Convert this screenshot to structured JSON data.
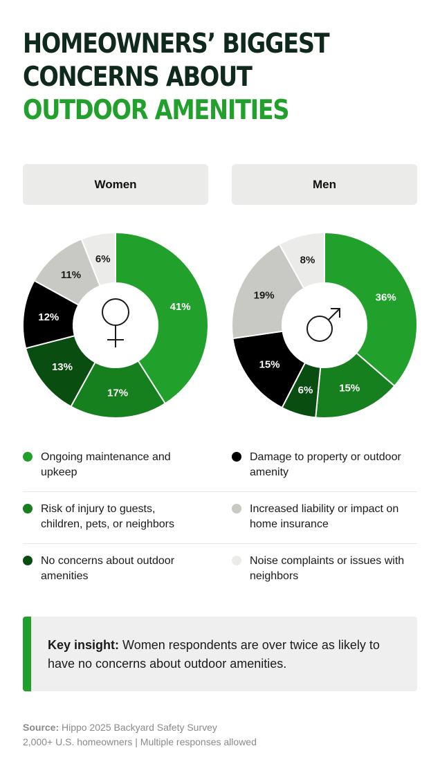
{
  "title": {
    "line1": "HOMEOWNERS’ BIGGEST",
    "line2": "CONCERNS ABOUT",
    "line3": "OUTDOOR AMENITIES"
  },
  "colors": {
    "maintenance": "#22a02c",
    "injury": "#15801d",
    "no_concerns": "#0a4d10",
    "damage": "#000000",
    "liability": "#c8c8c4",
    "noise": "#ebebea",
    "title_dark": "#0f2a1c",
    "accent": "#22a02c"
  },
  "chart_data": [
    {
      "type": "donut",
      "title": "Women",
      "center_icon": "female-symbol-icon",
      "slices": [
        {
          "key": "maintenance",
          "value": 41,
          "label": "41%"
        },
        {
          "key": "injury",
          "value": 17,
          "label": "17%"
        },
        {
          "key": "no_concerns",
          "value": 13,
          "label": "13%"
        },
        {
          "key": "damage",
          "value": 12,
          "label": "12%"
        },
        {
          "key": "liability",
          "value": 11,
          "label": "11%"
        },
        {
          "key": "noise",
          "value": 6,
          "label": "6%"
        }
      ]
    },
    {
      "type": "donut",
      "title": "Men",
      "center_icon": "male-symbol-icon",
      "slices": [
        {
          "key": "maintenance",
          "value": 36,
          "label": "36%"
        },
        {
          "key": "injury",
          "value": 15,
          "label": "15%"
        },
        {
          "key": "no_concerns",
          "value": 6,
          "label": "6%"
        },
        {
          "key": "damage",
          "value": 15,
          "label": "15%"
        },
        {
          "key": "liability",
          "value": 19,
          "label": "19%"
        },
        {
          "key": "noise",
          "value": 8,
          "label": "8%"
        }
      ]
    }
  ],
  "legend": [
    {
      "key": "maintenance",
      "label": "Ongoing maintenance and upkeep"
    },
    {
      "key": "damage",
      "label": "Damage to property or outdoor amenity"
    },
    {
      "key": "injury",
      "label": "Risk of injury to guests, children, pets, or neighbors"
    },
    {
      "key": "liability",
      "label": "Increased liability or impact on home insurance"
    },
    {
      "key": "no_concerns",
      "label": "No concerns about outdoor amenities"
    },
    {
      "key": "noise",
      "label": "Noise complaints or issues with neighbors"
    }
  ],
  "insight": {
    "label": "Key insight:",
    "text": "Women respondents are over twice as likely to have no concerns about outdoor amenities."
  },
  "source": {
    "label": "Source:",
    "text": "Hippo 2025 Backyard Safety Survey",
    "line2": "2,000+ U.S. homeowners | Multiple responses allowed"
  }
}
